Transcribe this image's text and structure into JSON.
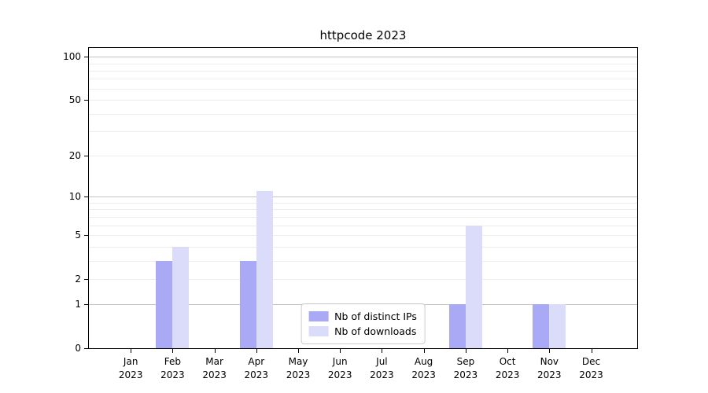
{
  "chart_data": {
    "type": "bar",
    "title": "httpcode 2023",
    "xlabel": "",
    "ylabel": "",
    "categories": [
      "Jan",
      "Feb",
      "Mar",
      "Apr",
      "May",
      "Jun",
      "Jul",
      "Aug",
      "Sep",
      "Oct",
      "Nov",
      "Dec"
    ],
    "category_year": "2023",
    "series": [
      {
        "name": "Nb of distinct IPs",
        "color": "#a9a9f5",
        "values": [
          0,
          3,
          0,
          3,
          0,
          0,
          0,
          0,
          1,
          0,
          1,
          0
        ]
      },
      {
        "name": "Nb of downloads",
        "color": "#dbdbfa",
        "values": [
          0,
          4,
          0,
          11,
          0,
          0,
          0,
          0,
          6,
          0,
          1,
          0
        ]
      }
    ],
    "y_scale": "log10(1+v)",
    "y_top_value": 115,
    "y_tick_values": [
      0,
      1,
      2,
      5,
      10,
      20,
      50,
      100
    ],
    "y_tick_labels": [
      "0",
      "1",
      "2",
      "5",
      "10",
      "20",
      "50",
      "100"
    ],
    "grid_major_values": [
      1,
      10,
      100
    ],
    "grid_minor_values": [
      2,
      3,
      4,
      5,
      6,
      7,
      8,
      9,
      20,
      30,
      40,
      50,
      60,
      70,
      80,
      90
    ],
    "legend_position": "lower center",
    "legend_items": [
      "Nb of distinct IPs",
      "Nb of downloads"
    ]
  },
  "colors": {
    "background": "#ffffff",
    "spine": "#000000",
    "text": "#000000",
    "grid_major": "#c3c3c3",
    "grid_minor": "#ededed",
    "legend_border": "#cccccc",
    "bar_distinct_ips": "#a9a9f5",
    "bar_downloads": "#dbdbfa"
  }
}
